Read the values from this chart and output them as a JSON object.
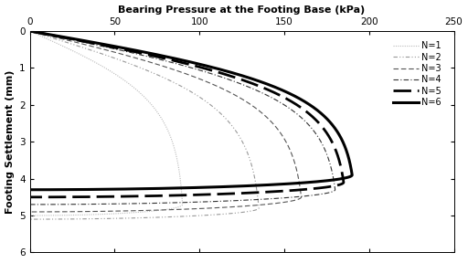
{
  "title": "Bearing Pressure at the Footing Base (kPa)",
  "ylabel": "Footing Settlement (mm)",
  "xlim": [
    0,
    250
  ],
  "ylim": [
    6,
    0
  ],
  "xticks": [
    0,
    50,
    100,
    150,
    200,
    250
  ],
  "yticks": [
    0,
    1,
    2,
    3,
    4,
    5,
    6
  ],
  "series": [
    {
      "label": "N=1",
      "p_ult": 90,
      "s_ult": 4.7,
      "s_end": 5.0,
      "color": "#bbbbbb",
      "linewidth": 0.8
    },
    {
      "label": "N=2",
      "p_ult": 135,
      "s_ult": 4.8,
      "s_end": 5.1,
      "color": "#999999",
      "linewidth": 0.8
    },
    {
      "label": "N=3",
      "p_ult": 160,
      "s_ult": 4.5,
      "s_end": 4.9,
      "color": "#555555",
      "linewidth": 0.8
    },
    {
      "label": "N=4",
      "p_ult": 180,
      "s_ult": 4.3,
      "s_end": 4.7,
      "color": "#333333",
      "linewidth": 0.8
    },
    {
      "label": "N=5",
      "p_ult": 185,
      "s_ult": 4.1,
      "s_end": 4.5,
      "color": "#000000",
      "linewidth": 2.0
    },
    {
      "label": "N=6",
      "p_ult": 190,
      "s_ult": 3.9,
      "s_end": 4.3,
      "color": "#000000",
      "linewidth": 2.2
    }
  ],
  "background_color": "#ffffff"
}
